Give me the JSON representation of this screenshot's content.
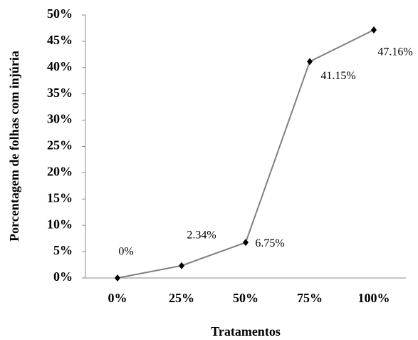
{
  "chart_data": {
    "type": "line",
    "xlabel": "Tratamentos",
    "ylabel": "Porcentagem de folhas com injúria",
    "categories": [
      "0%",
      "25%",
      "50%",
      "75%",
      "100%"
    ],
    "series": [
      {
        "color": "#808080",
        "marker_color": "#000000",
        "values": [
          0,
          2.34,
          6.75,
          41.15,
          47.16
        ],
        "value_labels": [
          "0%",
          "2.34%",
          "6.75%",
          "41.15%",
          "47.16%"
        ]
      }
    ],
    "ylim": [
      0,
      50
    ],
    "yticks": [
      {
        "value": 0,
        "label": "0%"
      },
      {
        "value": 5,
        "label": "5%"
      },
      {
        "value": 10,
        "label": "10%"
      },
      {
        "value": 15,
        "label": "15%"
      },
      {
        "value": 20,
        "label": "20%"
      },
      {
        "value": 25,
        "label": "25%"
      },
      {
        "value": 30,
        "label": "30%"
      },
      {
        "value": 35,
        "label": "35%"
      },
      {
        "value": 40,
        "label": "40%"
      },
      {
        "value": 45,
        "label": "45%"
      },
      {
        "value": 50,
        "label": "50%"
      }
    ],
    "grid": false
  }
}
